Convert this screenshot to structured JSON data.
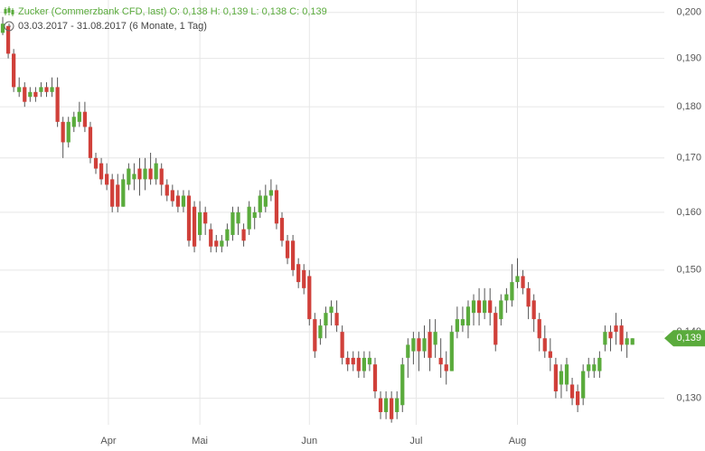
{
  "chart_data": {
    "type": "candlestick",
    "title": "Zucker (Commerzbank CFD, last)  O: 0,138  H: 0,139  L: 0,138  C: 0,139",
    "subtitle": "03.03.2017 - 31.08.2017   (6 Monate, 1 Tag)",
    "log_scale": true,
    "grid": true,
    "up_color": "#5aab3c",
    "down_color": "#d0403a",
    "ylim": [
      0.1262,
      0.2028
    ],
    "yticks": [
      {
        "value": 0.13,
        "label": "0,130"
      },
      {
        "value": 0.14,
        "label": "0,140"
      },
      {
        "value": 0.15,
        "label": "0,150"
      },
      {
        "value": 0.16,
        "label": "0,160"
      },
      {
        "value": 0.17,
        "label": "0,170"
      },
      {
        "value": 0.18,
        "label": "0,180"
      },
      {
        "value": 0.19,
        "label": "0,190"
      },
      {
        "value": 0.2,
        "label": "0,200"
      }
    ],
    "xlim": [
      -0.5,
      120
    ],
    "xticks": [
      {
        "value": 19.3,
        "label": "Apr"
      },
      {
        "value": 36,
        "label": "Mai"
      },
      {
        "value": 56,
        "label": "Jun"
      },
      {
        "value": 75.5,
        "label": "Jul"
      },
      {
        "value": 94,
        "label": "Aug"
      }
    ],
    "last_label": {
      "value": 0.139,
      "label": "0,139"
    },
    "open": [
      0.1955,
      0.197,
      0.191,
      0.183,
      0.184,
      0.182,
      0.183,
      0.183,
      0.184,
      0.183,
      0.184,
      0.177,
      0.173,
      0.176,
      0.177,
      0.179,
      0.176,
      0.17,
      0.169,
      0.167,
      0.166,
      0.165,
      0.161,
      0.165,
      0.166,
      0.168,
      0.166,
      0.168,
      0.166,
      0.168,
      0.165,
      0.164,
      0.163,
      0.161,
      0.163,
      0.161,
      0.156,
      0.16,
      0.157,
      0.155,
      0.154,
      0.155,
      0.156,
      0.158,
      0.157,
      0.157,
      0.159,
      0.16,
      0.161,
      0.163,
      0.164,
      0.159,
      0.155,
      0.155,
      0.151,
      0.15,
      0.149,
      0.142,
      0.139,
      0.141,
      0.143,
      0.143,
      0.14,
      0.136,
      0.136,
      0.136,
      0.134,
      0.135,
      0.135,
      0.13,
      0.128,
      0.13,
      0.128,
      0.129,
      0.136,
      0.137,
      0.139,
      0.137,
      0.14,
      0.138,
      0.136,
      0.135,
      0.134,
      0.14,
      0.141,
      0.141,
      0.143,
      0.145,
      0.143,
      0.145,
      0.143,
      0.142,
      0.145,
      0.145,
      0.148,
      0.149,
      0.147,
      0.145,
      0.142,
      0.139,
      0.137,
      0.135,
      0.132,
      0.132,
      0.132,
      0.131,
      0.13,
      0.134,
      0.134,
      0.134,
      0.138,
      0.14,
      0.141,
      0.141,
      0.138,
      0.138
    ],
    "high": [
      0.199,
      0.197,
      0.192,
      0.186,
      0.185,
      0.184,
      0.184,
      0.185,
      0.185,
      0.186,
      0.186,
      0.178,
      0.178,
      0.179,
      0.181,
      0.181,
      0.177,
      0.171,
      0.17,
      0.169,
      0.167,
      0.167,
      0.167,
      0.169,
      0.169,
      0.17,
      0.17,
      0.171,
      0.17,
      0.169,
      0.166,
      0.165,
      0.164,
      0.164,
      0.164,
      0.162,
      0.162,
      0.161,
      0.158,
      0.156,
      0.156,
      0.158,
      0.161,
      0.161,
      0.158,
      0.162,
      0.161,
      0.164,
      0.165,
      0.166,
      0.165,
      0.16,
      0.156,
      0.156,
      0.152,
      0.151,
      0.15,
      0.143,
      0.142,
      0.144,
      0.145,
      0.145,
      0.141,
      0.137,
      0.137,
      0.137,
      0.137,
      0.137,
      0.136,
      0.131,
      0.131,
      0.131,
      0.131,
      0.136,
      0.139,
      0.14,
      0.14,
      0.141,
      0.142,
      0.142,
      0.139,
      0.137,
      0.141,
      0.144,
      0.144,
      0.145,
      0.146,
      0.147,
      0.147,
      0.147,
      0.144,
      0.146,
      0.147,
      0.151,
      0.152,
      0.15,
      0.148,
      0.146,
      0.143,
      0.141,
      0.139,
      0.136,
      0.135,
      0.136,
      0.133,
      0.132,
      0.135,
      0.136,
      0.136,
      0.137,
      0.141,
      0.141,
      0.143,
      0.142,
      0.14,
      0.139
    ],
    "low": [
      0.195,
      0.19,
      0.183,
      0.182,
      0.18,
      0.181,
      0.181,
      0.182,
      0.182,
      0.182,
      0.176,
      0.17,
      0.172,
      0.175,
      0.176,
      0.175,
      0.169,
      0.167,
      0.165,
      0.164,
      0.16,
      0.16,
      0.161,
      0.164,
      0.164,
      0.163,
      0.164,
      0.165,
      0.165,
      0.163,
      0.162,
      0.161,
      0.16,
      0.16,
      0.154,
      0.153,
      0.155,
      0.156,
      0.153,
      0.153,
      0.153,
      0.154,
      0.155,
      0.156,
      0.154,
      0.156,
      0.157,
      0.159,
      0.16,
      0.162,
      0.157,
      0.154,
      0.151,
      0.149,
      0.147,
      0.146,
      0.141,
      0.136,
      0.138,
      0.139,
      0.141,
      0.14,
      0.135,
      0.134,
      0.134,
      0.133,
      0.133,
      0.134,
      0.13,
      0.127,
      0.127,
      0.1265,
      0.127,
      0.128,
      0.133,
      0.135,
      0.134,
      0.136,
      0.134,
      0.136,
      0.133,
      0.132,
      0.134,
      0.139,
      0.14,
      0.139,
      0.141,
      0.141,
      0.142,
      0.141,
      0.137,
      0.141,
      0.143,
      0.144,
      0.147,
      0.146,
      0.142,
      0.14,
      0.137,
      0.136,
      0.134,
      0.13,
      0.13,
      0.131,
      0.129,
      0.128,
      0.129,
      0.133,
      0.133,
      0.133,
      0.137,
      0.137,
      0.138,
      0.137,
      0.136,
      0.138
    ],
    "close": [
      0.1975,
      0.191,
      0.184,
      0.184,
      0.181,
      0.183,
      0.182,
      0.184,
      0.183,
      0.184,
      0.177,
      0.173,
      0.177,
      0.178,
      0.179,
      0.176,
      0.17,
      0.168,
      0.166,
      0.165,
      0.161,
      0.161,
      0.166,
      0.168,
      0.167,
      0.166,
      0.168,
      0.166,
      0.169,
      0.165,
      0.163,
      0.162,
      0.161,
      0.163,
      0.155,
      0.154,
      0.16,
      0.158,
      0.154,
      0.154,
      0.155,
      0.157,
      0.16,
      0.16,
      0.155,
      0.161,
      0.16,
      0.163,
      0.163,
      0.164,
      0.158,
      0.155,
      0.152,
      0.15,
      0.148,
      0.147,
      0.142,
      0.137,
      0.141,
      0.143,
      0.144,
      0.141,
      0.136,
      0.135,
      0.135,
      0.134,
      0.136,
      0.136,
      0.131,
      0.128,
      0.13,
      0.127,
      0.13,
      0.135,
      0.138,
      0.139,
      0.137,
      0.139,
      0.136,
      0.14,
      0.135,
      0.134,
      0.14,
      0.142,
      0.142,
      0.144,
      0.145,
      0.143,
      0.145,
      0.143,
      0.138,
      0.145,
      0.146,
      0.148,
      0.149,
      0.147,
      0.144,
      0.142,
      0.139,
      0.137,
      0.136,
      0.131,
      0.134,
      0.135,
      0.13,
      0.129,
      0.134,
      0.135,
      0.135,
      0.136,
      0.14,
      0.139,
      0.14,
      0.138,
      0.139,
      0.139
    ]
  }
}
